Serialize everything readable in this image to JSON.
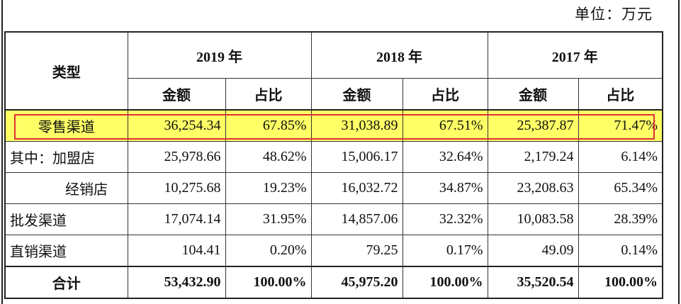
{
  "unit_label": "单位：万元",
  "header": {
    "type_label": "类型",
    "years": [
      "2019 年",
      "2018 年",
      "2017 年"
    ],
    "sub": {
      "amount": "金额",
      "ratio": "占比"
    }
  },
  "rows": [
    {
      "label": "零售渠道",
      "values": [
        "36,254.34",
        "67.85%",
        "31,038.89",
        "67.51%",
        "25,387.87",
        "71.47%"
      ]
    },
    {
      "label": "其中：加盟店",
      "values": [
        "25,978.66",
        "48.62%",
        "15,006.17",
        "32.64%",
        "2,179.24",
        "6.14%"
      ]
    },
    {
      "label": "经销店",
      "values": [
        "10,275.68",
        "19.23%",
        "16,032.72",
        "34.87%",
        "23,208.63",
        "65.34%"
      ]
    },
    {
      "label": "批发渠道",
      "values": [
        "17,074.14",
        "31.95%",
        "14,857.06",
        "32.32%",
        "10,083.58",
        "28.39%"
      ]
    },
    {
      "label": "直销渠道",
      "values": [
        "104.41",
        "0.20%",
        "79.25",
        "0.17%",
        "49.09",
        "0.14%"
      ]
    },
    {
      "label": "合计",
      "values": [
        "53,432.90",
        "100.00%",
        "45,975.20",
        "100.00%",
        "35,520.54",
        "100.00%"
      ]
    }
  ],
  "highlight_color": "#ffff66",
  "highlight_border_color": "#e0303a"
}
